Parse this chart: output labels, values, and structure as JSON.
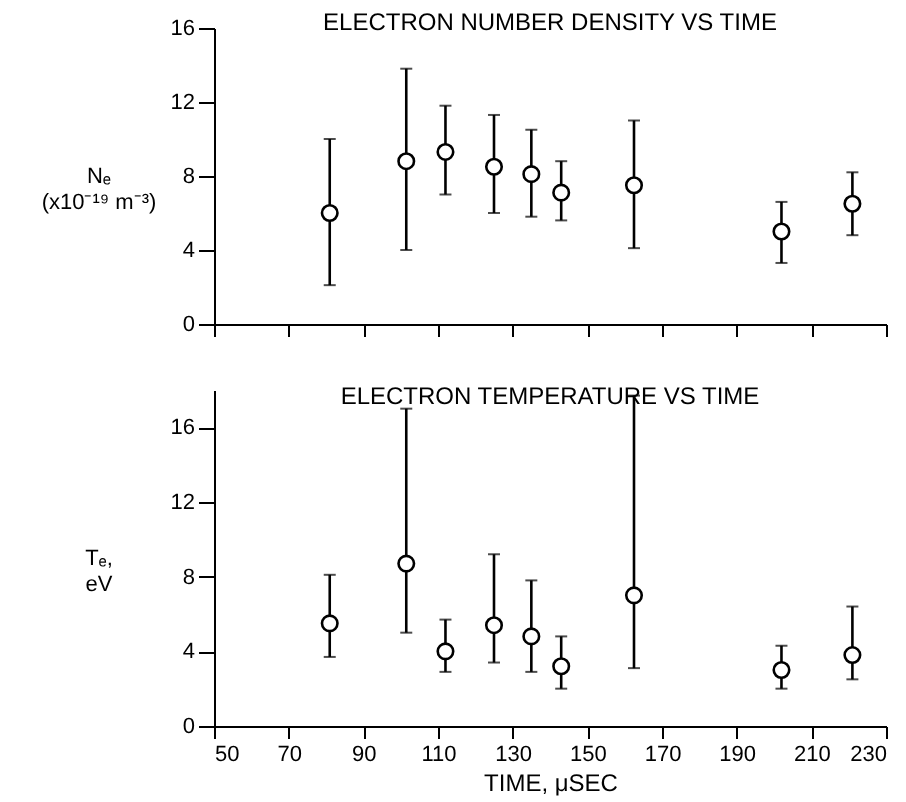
{
  "chart_data": [
    {
      "type": "scatter",
      "title": "ELECTRON NUMBER DENSITY VS TIME",
      "ylabel": "Nₑ\n(x10⁻¹⁹ m⁻³)",
      "marker": "circle",
      "tick_labels": "y",
      "x": [
        81,
        101.5,
        112,
        125,
        135,
        143,
        162.5,
        202,
        221
      ],
      "values": [
        6,
        8.8,
        9.3,
        8.5,
        8.1,
        7.1,
        7.5,
        5,
        6.5
      ],
      "errors": [
        [
          2.1,
          10
        ],
        [
          4,
          13.8
        ],
        [
          7,
          11.8
        ],
        [
          6,
          11.3
        ],
        [
          5.8,
          10.5
        ],
        [
          5.6,
          8.8
        ],
        [
          4.1,
          11
        ],
        [
          3.3,
          6.6
        ],
        [
          4.8,
          8.2
        ]
      ],
      "xlim": [
        50,
        230
      ],
      "xticks": [
        50,
        70,
        90,
        110,
        130,
        150,
        170,
        190,
        210,
        230
      ],
      "ylim": [
        0,
        16
      ],
      "yticks": [
        0,
        4,
        8,
        12,
        16
      ]
    },
    {
      "type": "scatter",
      "title": "ELECTRON TEMPERATURE VS TIME",
      "ylabel": "Tₑ,\neV",
      "xlabel": "TIME, μSEC",
      "marker": "circle",
      "x": [
        81,
        101.5,
        112,
        125,
        135,
        143,
        162.5,
        202,
        221
      ],
      "values": [
        5.5,
        8.7,
        4,
        5.4,
        4.8,
        3.2,
        7,
        3,
        3.8
      ],
      "errors": [
        [
          3.7,
          8.1
        ],
        [
          5,
          17
        ],
        [
          2.9,
          5.7
        ],
        [
          3.4,
          9.2
        ],
        [
          2.9,
          7.8
        ],
        [
          2,
          4.8
        ],
        [
          3.1,
          17.7
        ],
        [
          2,
          4.3
        ],
        [
          2.5,
          6.4
        ]
      ],
      "xlim": [
        50,
        230
      ],
      "xticks": [
        50,
        70,
        90,
        110,
        130,
        150,
        170,
        190,
        210,
        230
      ],
      "ylim": [
        0,
        18
      ],
      "yticks": [
        0,
        4,
        8,
        12,
        16
      ]
    }
  ]
}
